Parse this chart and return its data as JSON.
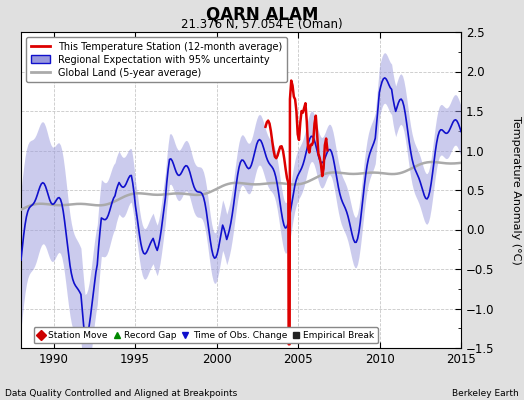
{
  "title": "QARN ALAM",
  "subtitle": "21.376 N, 57.054 E (Oman)",
  "ylabel": "Temperature Anomaly (°C)",
  "xlabel_left": "Data Quality Controlled and Aligned at Breakpoints",
  "xlabel_right": "Berkeley Earth",
  "xlim": [
    1988,
    2015
  ],
  "ylim": [
    -1.5,
    2.5
  ],
  "yticks": [
    -1.5,
    -1.0,
    -0.5,
    0.0,
    0.5,
    1.0,
    1.5,
    2.0,
    2.5
  ],
  "xticks": [
    1990,
    1995,
    2000,
    2005,
    2010,
    2015
  ],
  "bg_color": "#e0e0e0",
  "plot_bg_color": "#ffffff",
  "grid_color": "#c8c8c8",
  "blue_line_color": "#1010cc",
  "blue_fill_color": "#9999dd",
  "red_line_color": "#dd0000",
  "gray_line_color": "#aaaaaa",
  "legend_items": [
    {
      "label": "This Temperature Station (12-month average)",
      "color": "#dd0000",
      "lw": 2.0
    },
    {
      "label": "Regional Expectation with 95% uncertainty",
      "color": "#1010cc",
      "lw": 1.5
    },
    {
      "label": "Global Land (5-year average)",
      "color": "#aaaaaa",
      "lw": 2.0
    }
  ],
  "bottom_legend": [
    {
      "label": "Station Move",
      "marker": "D",
      "color": "#cc0000"
    },
    {
      "label": "Record Gap",
      "marker": "^",
      "color": "#008800"
    },
    {
      "label": "Time of Obs. Change",
      "marker": "v",
      "color": "#1010cc"
    },
    {
      "label": "Empirical Break",
      "marker": "s",
      "color": "#222222"
    }
  ]
}
